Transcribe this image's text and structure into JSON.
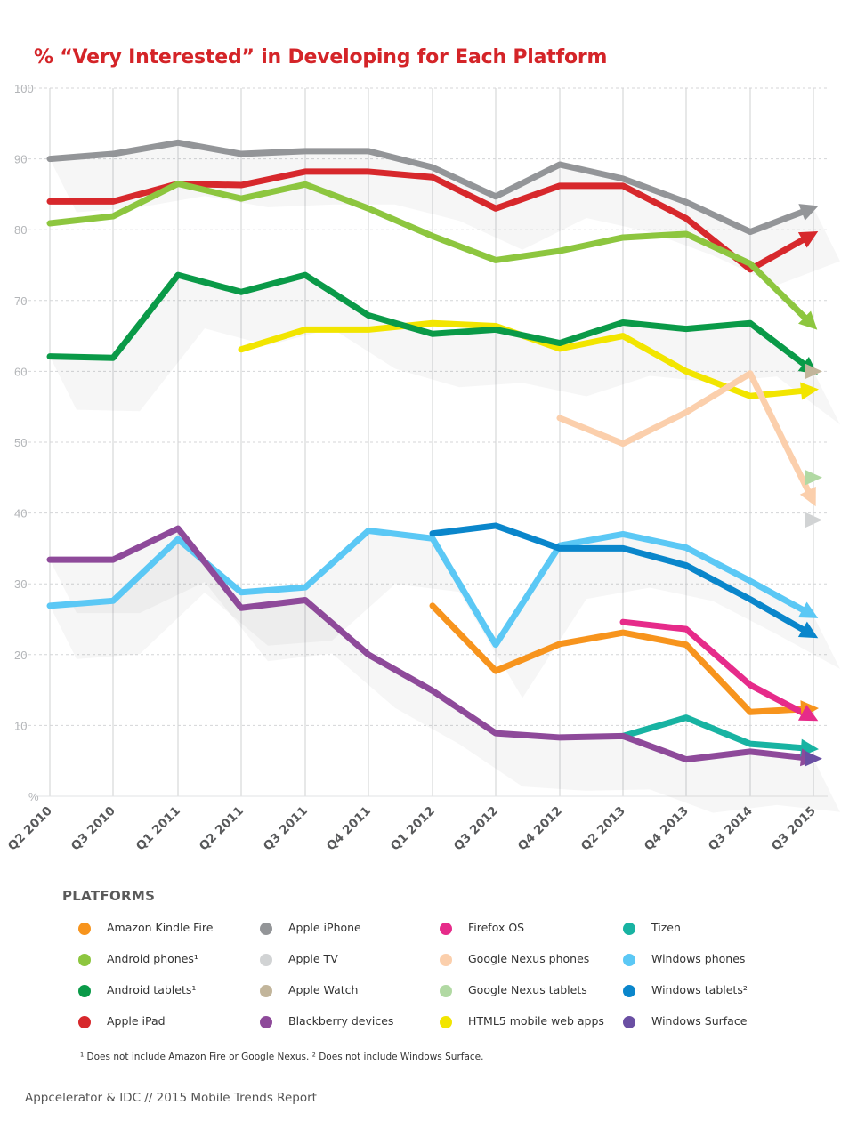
{
  "title": "% “Very Interested” in Developing for Each Platform",
  "legend": {
    "heading": "PLATFORMS",
    "items": [
      {
        "label": "Amazon Kindle Fire",
        "color": "#f7941d"
      },
      {
        "label": "Android phones¹",
        "color": "#8dc63f"
      },
      {
        "label": "Android tablets¹",
        "color": "#0a9a48"
      },
      {
        "label": "Apple iPad",
        "color": "#d7282c"
      },
      {
        "label": "Apple iPhone",
        "color": "#939598"
      },
      {
        "label": "Apple TV",
        "color": "#d1d3d4"
      },
      {
        "label": "Apple Watch",
        "color": "#c2b59b"
      },
      {
        "label": "Blackberry devices",
        "color": "#8e4a9a"
      },
      {
        "label": "Firefox OS",
        "color": "#e62b8a"
      },
      {
        "label": "Google Nexus phones",
        "color": "#fbcfac"
      },
      {
        "label": "Google Nexus tablets",
        "color": "#b1d9a3"
      },
      {
        "label": "HTML5 mobile web apps",
        "color": "#f2e500"
      },
      {
        "label": "Tizen",
        "color": "#18b3a2"
      },
      {
        "label": "Windows phones",
        "color": "#5bc8f5"
      },
      {
        "label": "Windows tablets²",
        "color": "#0a86cb"
      },
      {
        "label": "Windows Surface",
        "color": "#6a4fa3"
      }
    ]
  },
  "footnote": "¹ Does not include Amazon Fire or Google Nexus. ² Does not include Windows Surface.",
  "source": "Appcelerator & IDC // 2015 Mobile Trends Report",
  "chart_data": {
    "type": "line",
    "title": "% “Very Interested” in Developing for Each Platform",
    "xlabel": "",
    "ylabel": "",
    "y_unit_label": "%",
    "ylim": [
      0,
      100
    ],
    "yticks": [
      10,
      20,
      30,
      40,
      50,
      60,
      70,
      80,
      90,
      100
    ],
    "grid": "vertical lines at each quarter, horizontal dashed lines at each tick",
    "legend_placement": "below",
    "categories": [
      "Q2 2010",
      "Q3 2010",
      "Q1 2011",
      "Q2 2011",
      "Q3 2011",
      "Q4 2011",
      "Q1 2012",
      "Q3 2012",
      "Q4 2012",
      "Q2 2013",
      "Q4 2013",
      "Q3 2014",
      "Q3 2015"
    ],
    "series": [
      {
        "name": "Apple iPhone",
        "color": "#939598",
        "values": [
          90,
          90.7,
          92.3,
          90.7,
          91.1,
          91.1,
          88.8,
          84.7,
          89.2,
          87.2,
          83.9,
          79.7,
          83.1
        ]
      },
      {
        "name": "Apple iPad",
        "color": "#d7282c",
        "values": [
          84,
          84,
          86.5,
          86.3,
          88.2,
          88.2,
          87.4,
          83,
          86.2,
          86.2,
          81.6,
          74.4,
          79.4
        ]
      },
      {
        "name": "Android phones¹",
        "color": "#8dc63f",
        "values": [
          80.9,
          81.9,
          86.5,
          84.4,
          86.4,
          83,
          79.1,
          75.7,
          77,
          78.9,
          79.4,
          75.2,
          66.4
        ]
      },
      {
        "name": "Android tablets¹",
        "color": "#0a9a48",
        "values": [
          62.1,
          61.9,
          73.6,
          71.2,
          73.6,
          67.9,
          65.3,
          65.9,
          64,
          66.9,
          66,
          66.8,
          60
        ]
      },
      {
        "name": "HTML5 mobile web apps",
        "color": "#f2e500",
        "values": [
          null,
          null,
          null,
          63.1,
          65.9,
          65.9,
          66.8,
          66.4,
          63.2,
          65,
          60,
          56.5,
          57.4
        ]
      },
      {
        "name": "Google Nexus phones",
        "color": "#fbcfac",
        "values": [
          null,
          null,
          null,
          null,
          null,
          null,
          null,
          null,
          53.4,
          49.8,
          54.2,
          59.7,
          41.6
        ]
      },
      {
        "name": "Google Nexus tablets",
        "color": "#b1d9a3",
        "values": [
          null,
          null,
          null,
          null,
          null,
          null,
          null,
          null,
          null,
          null,
          null,
          null,
          45
        ]
      },
      {
        "name": "Apple TV",
        "color": "#d1d3d4",
        "values": [
          null,
          null,
          null,
          null,
          null,
          null,
          null,
          null,
          null,
          null,
          null,
          null,
          39
        ]
      },
      {
        "name": "Apple Watch",
        "color": "#c2b59b",
        "values": [
          null,
          null,
          null,
          null,
          null,
          null,
          null,
          null,
          null,
          null,
          null,
          null,
          60
        ]
      },
      {
        "name": "Windows phones",
        "color": "#5bc8f5",
        "values": [
          26.9,
          27.6,
          36.3,
          28.8,
          29.5,
          37.5,
          36.4,
          21.4,
          35.4,
          37,
          35.1,
          30.4,
          25.5
        ]
      },
      {
        "name": "Windows tablets²",
        "color": "#0a86cb",
        "values": [
          null,
          null,
          null,
          null,
          null,
          null,
          37.1,
          38.2,
          35,
          35,
          32.6,
          27.8,
          22.7
        ]
      },
      {
        "name": "Blackberry devices",
        "color": "#8e4a9a",
        "values": [
          33.4,
          33.4,
          37.8,
          26.6,
          27.7,
          20,
          14.9,
          8.9,
          8.3,
          8.5,
          5.2,
          6.3,
          5.3
        ]
      },
      {
        "name": "Amazon Kindle Fire",
        "color": "#f7941d",
        "values": [
          null,
          null,
          null,
          null,
          null,
          null,
          26.9,
          17.7,
          21.5,
          23.1,
          21.4,
          11.9,
          12.4
        ]
      },
      {
        "name": "Firefox OS",
        "color": "#e62b8a",
        "values": [
          null,
          null,
          null,
          null,
          null,
          null,
          null,
          null,
          null,
          24.6,
          23.6,
          15.7,
          11
        ]
      },
      {
        "name": "Tizen",
        "color": "#18b3a2",
        "values": [
          null,
          null,
          null,
          null,
          null,
          null,
          null,
          null,
          null,
          8.5,
          11.1,
          7.4,
          6.7
        ]
      },
      {
        "name": "Windows Surface",
        "color": "#6a4fa3",
        "values": [
          null,
          null,
          null,
          null,
          null,
          null,
          null,
          null,
          null,
          null,
          null,
          null,
          5.3
        ]
      }
    ]
  }
}
